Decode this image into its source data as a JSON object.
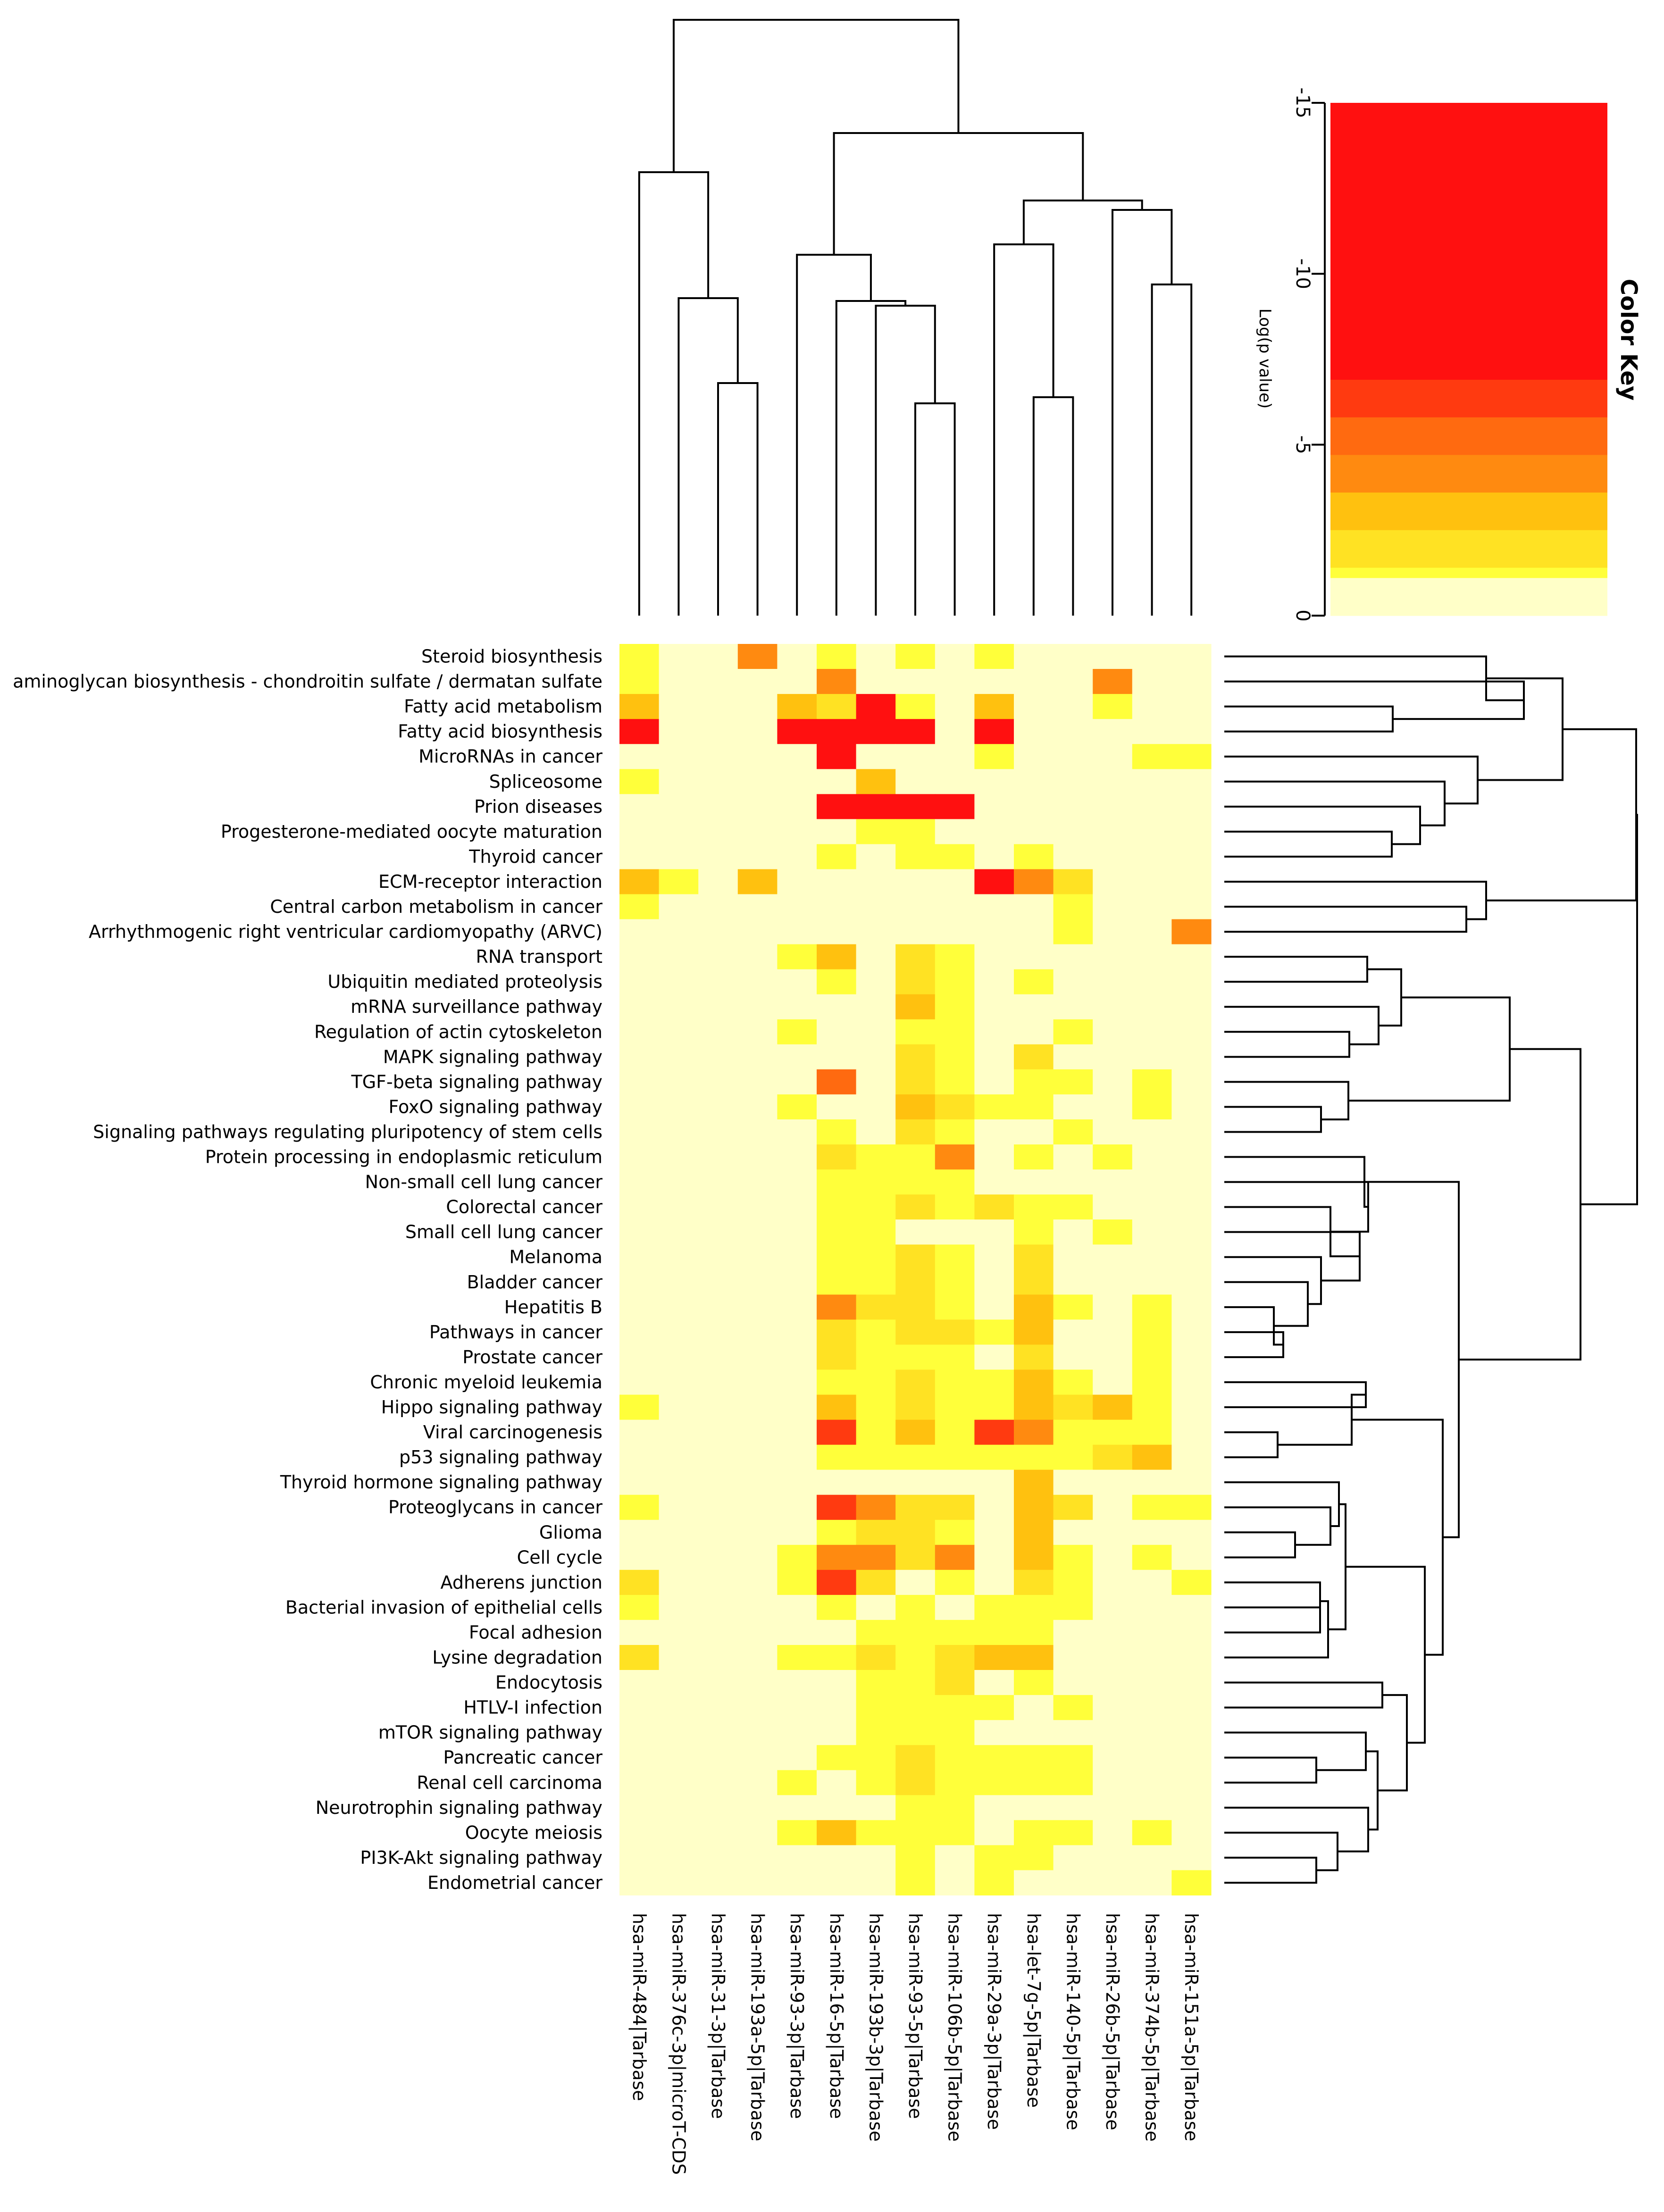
{
  "chart_data": {
    "type": "heatmap",
    "value_label": "Log(p value)",
    "key_title": "Color Key",
    "key_ticks": [
      "-15",
      "-10",
      "-5",
      "0"
    ],
    "key_range": [
      -15,
      0
    ],
    "palette": [
      {
        "value": 0,
        "color": "#ffffc8"
      },
      {
        "value": -1,
        "color": "#ffff3a"
      },
      {
        "value": -2,
        "color": "#ffe223"
      },
      {
        "value": -3,
        "color": "#ffc10f"
      },
      {
        "value": -4,
        "color": "#ff8a10"
      },
      {
        "value": -5,
        "color": "#ff6a10"
      },
      {
        "value": -6,
        "color": "#ff3a10"
      },
      {
        "value": -7,
        "color": "#ff1010"
      }
    ],
    "columns": [
      "hsa-miR-484|Tarbase",
      "hsa-miR-376c-3p|microT-CDS",
      "hsa-miR-31-3p|Tarbase",
      "hsa-miR-193a-5p|Tarbase",
      "hsa-miR-93-3p|Tarbase",
      "hsa-miR-16-5p|Tarbase",
      "hsa-miR-193b-3p|Tarbase",
      "hsa-miR-93-5p|Tarbase",
      "hsa-miR-106b-5p|Tarbase",
      "hsa-miR-29a-3p|Tarbase",
      "hsa-let-7g-5p|Tarbase",
      "hsa-miR-140-5p|Tarbase",
      "hsa-miR-26b-5p|Tarbase",
      "hsa-miR-374b-5p|Tarbase",
      "hsa-miR-151a-5p|Tarbase"
    ],
    "rows": [
      "Steroid biosynthesis",
      "aminoglycan biosynthesis - chondroitin sulfate / dermatan sulfate",
      "Fatty acid metabolism",
      "Fatty acid biosynthesis",
      "MicroRNAs in cancer",
      "Spliceosome",
      "Prion diseases",
      "Progesterone-mediated oocyte maturation",
      "Thyroid cancer",
      "ECM-receptor interaction",
      "Central carbon metabolism in cancer",
      "Arrhythmogenic right ventricular cardiomyopathy (ARVC)",
      "RNA transport",
      "Ubiquitin mediated proteolysis",
      "mRNA surveillance pathway",
      "Regulation of actin cytoskeleton",
      "MAPK signaling pathway",
      "TGF-beta signaling pathway",
      "FoxO signaling pathway",
      "Signaling pathways regulating pluripotency of stem cells",
      "Protein processing in endoplasmic reticulum",
      "Non-small cell lung cancer",
      "Colorectal cancer",
      "Small cell lung cancer",
      "Melanoma",
      "Bladder cancer",
      "Hepatitis B",
      "Pathways in cancer",
      "Prostate cancer",
      "Chronic myeloid leukemia",
      "Hippo signaling pathway",
      "Viral carcinogenesis",
      "p53 signaling pathway",
      "Thyroid hormone signaling pathway",
      "Proteoglycans in cancer",
      "Glioma",
      "Cell cycle",
      "Adherens junction",
      "Bacterial invasion of epithelial cells",
      "Focal adhesion",
      "Lysine degradation",
      "Endocytosis",
      "HTLV-I infection",
      "mTOR signaling pathway",
      "Pancreatic cancer",
      "Renal cell carcinoma",
      "Neurotrophin signaling pathway",
      "Oocyte meiosis",
      "PI3K-Akt signaling pathway",
      "Endometrial cancer"
    ],
    "matrix": [
      [
        -1,
        0,
        0,
        -4,
        0,
        -1,
        0,
        -1,
        0,
        -1,
        0,
        0,
        0,
        0,
        0
      ],
      [
        -1,
        0,
        0,
        0,
        0,
        -4,
        0,
        0,
        0,
        0,
        0,
        0,
        -4,
        0,
        0
      ],
      [
        -3,
        0,
        0,
        0,
        -3,
        -2,
        -7,
        -1,
        0,
        -3,
        0,
        0,
        -1,
        0,
        0
      ],
      [
        -7,
        0,
        0,
        0,
        -7,
        -7,
        -7,
        -7,
        0,
        -7,
        0,
        0,
        0,
        0,
        0
      ],
      [
        0,
        0,
        0,
        0,
        0,
        -7,
        0,
        0,
        0,
        -1,
        0,
        0,
        0,
        -1,
        -1
      ],
      [
        -1,
        0,
        0,
        0,
        0,
        0,
        -3,
        0,
        0,
        0,
        0,
        0,
        0,
        0,
        0
      ],
      [
        0,
        0,
        0,
        0,
        0,
        -7,
        -7,
        -7,
        -7,
        0,
        0,
        0,
        0,
        0,
        0
      ],
      [
        0,
        0,
        0,
        0,
        0,
        0,
        -1,
        -1,
        0,
        0,
        0,
        0,
        0,
        0,
        0
      ],
      [
        0,
        0,
        0,
        0,
        0,
        -1,
        0,
        -1,
        -1,
        0,
        -1,
        0,
        0,
        0,
        0
      ],
      [
        -3,
        -1,
        0,
        -3,
        0,
        0,
        0,
        0,
        0,
        -7,
        -4,
        -2,
        0,
        0,
        0
      ],
      [
        -1,
        0,
        0,
        0,
        0,
        0,
        0,
        0,
        0,
        0,
        0,
        -1,
        0,
        0,
        0
      ],
      [
        0,
        0,
        0,
        0,
        0,
        0,
        0,
        0,
        0,
        0,
        0,
        -1,
        0,
        0,
        -4
      ],
      [
        0,
        0,
        0,
        0,
        -1,
        -3,
        0,
        -2,
        -1,
        0,
        0,
        0,
        0,
        0,
        0
      ],
      [
        0,
        0,
        0,
        0,
        0,
        -1,
        0,
        -2,
        -1,
        0,
        -1,
        0,
        0,
        0,
        0
      ],
      [
        0,
        0,
        0,
        0,
        0,
        0,
        0,
        -3,
        -1,
        0,
        0,
        0,
        0,
        0,
        0
      ],
      [
        0,
        0,
        0,
        0,
        -1,
        0,
        0,
        -1,
        -1,
        0,
        0,
        -1,
        0,
        0,
        0
      ],
      [
        0,
        0,
        0,
        0,
        0,
        0,
        0,
        -2,
        -1,
        0,
        -2,
        0,
        0,
        0,
        0
      ],
      [
        0,
        0,
        0,
        0,
        0,
        -5,
        0,
        -2,
        -1,
        0,
        -1,
        -1,
        0,
        -1,
        0
      ],
      [
        0,
        0,
        0,
        0,
        -1,
        0,
        0,
        -3,
        -2,
        -1,
        -1,
        0,
        0,
        -1,
        0
      ],
      [
        0,
        0,
        0,
        0,
        0,
        -1,
        0,
        -2,
        -1,
        0,
        0,
        -1,
        0,
        0,
        0
      ],
      [
        0,
        0,
        0,
        0,
        0,
        -2,
        -1,
        -1,
        -4,
        0,
        -1,
        0,
        -1,
        0,
        0
      ],
      [
        0,
        0,
        0,
        0,
        0,
        -1,
        -1,
        -1,
        -1,
        0,
        0,
        0,
        0,
        0,
        0
      ],
      [
        0,
        0,
        0,
        0,
        0,
        -1,
        -1,
        -2,
        -1,
        -2,
        -1,
        -1,
        0,
        0,
        0
      ],
      [
        0,
        0,
        0,
        0,
        0,
        -1,
        -1,
        0,
        0,
        0,
        -1,
        0,
        -1,
        0,
        0
      ],
      [
        0,
        0,
        0,
        0,
        0,
        -1,
        -1,
        -2,
        -1,
        0,
        -2,
        0,
        0,
        0,
        0
      ],
      [
        0,
        0,
        0,
        0,
        0,
        -1,
        -1,
        -2,
        -1,
        0,
        -2,
        0,
        0,
        0,
        0
      ],
      [
        0,
        0,
        0,
        0,
        0,
        -4,
        -2,
        -2,
        -1,
        0,
        -3,
        -1,
        0,
        -1,
        0
      ],
      [
        0,
        0,
        0,
        0,
        0,
        -2,
        -1,
        -2,
        -2,
        -1,
        -3,
        0,
        0,
        -1,
        0
      ],
      [
        0,
        0,
        0,
        0,
        0,
        -2,
        -1,
        -1,
        -1,
        0,
        -2,
        0,
        0,
        -1,
        0
      ],
      [
        0,
        0,
        0,
        0,
        0,
        -1,
        -1,
        -2,
        -1,
        -1,
        -3,
        -1,
        0,
        -1,
        0
      ],
      [
        -1,
        0,
        0,
        0,
        0,
        -3,
        -1,
        -2,
        -1,
        -1,
        -3,
        -2,
        -3,
        -1,
        0
      ],
      [
        0,
        0,
        0,
        0,
        0,
        -6,
        -1,
        -3,
        -1,
        -6,
        -4,
        -1,
        -1,
        -1,
        0
      ],
      [
        0,
        0,
        0,
        0,
        0,
        -1,
        -1,
        -1,
        -1,
        -1,
        -1,
        -1,
        -2,
        -3,
        0
      ],
      [
        0,
        0,
        0,
        0,
        0,
        0,
        0,
        0,
        0,
        0,
        -3,
        0,
        0,
        0,
        0
      ],
      [
        -1,
        0,
        0,
        0,
        0,
        -6,
        -4,
        -2,
        -2,
        0,
        -3,
        -2,
        0,
        -1,
        -1
      ],
      [
        0,
        0,
        0,
        0,
        0,
        -1,
        -2,
        -2,
        -1,
        0,
        -3,
        0,
        0,
        0,
        0
      ],
      [
        0,
        0,
        0,
        0,
        -1,
        -4,
        -4,
        -2,
        -4,
        0,
        -3,
        -1,
        0,
        -1,
        0
      ],
      [
        -2,
        0,
        0,
        0,
        -1,
        -6,
        -2,
        0,
        -1,
        0,
        -2,
        -1,
        0,
        0,
        -1
      ],
      [
        -1,
        0,
        0,
        0,
        0,
        -1,
        0,
        -1,
        0,
        -1,
        -1,
        -1,
        0,
        0,
        0
      ],
      [
        0,
        0,
        0,
        0,
        0,
        0,
        -1,
        -1,
        -1,
        -1,
        -1,
        0,
        0,
        0,
        0
      ],
      [
        -2,
        0,
        0,
        0,
        -1,
        -1,
        -2,
        -1,
        -2,
        -3,
        -3,
        0,
        0,
        0,
        0
      ],
      [
        0,
        0,
        0,
        0,
        0,
        0,
        -1,
        -1,
        -2,
        0,
        -1,
        0,
        0,
        0,
        0
      ],
      [
        0,
        0,
        0,
        0,
        0,
        0,
        -1,
        -1,
        -1,
        -1,
        0,
        -1,
        0,
        0,
        0
      ],
      [
        0,
        0,
        0,
        0,
        0,
        0,
        -1,
        -1,
        -1,
        0,
        0,
        0,
        0,
        0,
        0
      ],
      [
        0,
        0,
        0,
        0,
        0,
        -1,
        -1,
        -2,
        -1,
        -1,
        -1,
        -1,
        0,
        0,
        0
      ],
      [
        0,
        0,
        0,
        0,
        -1,
        0,
        -1,
        -2,
        -1,
        -1,
        -1,
        -1,
        0,
        0,
        0
      ],
      [
        0,
        0,
        0,
        0,
        0,
        0,
        0,
        -1,
        -1,
        0,
        0,
        0,
        0,
        0,
        0
      ],
      [
        0,
        0,
        0,
        0,
        -1,
        -3,
        -1,
        -1,
        -1,
        0,
        -1,
        -1,
        0,
        -1,
        0
      ],
      [
        0,
        0,
        0,
        0,
        0,
        0,
        0,
        -1,
        0,
        -1,
        -1,
        0,
        0,
        0,
        0
      ],
      [
        0,
        0,
        0,
        0,
        0,
        0,
        0,
        -1,
        0,
        -1,
        0,
        0,
        0,
        0,
        -1
      ]
    ],
    "column_dendrogram": "((miR-484,(miR-376c,(miR-31,miR-193a))),((miR-93-3p,(miR-16,(miR-193b,(miR-93-5p,miR-106b)))),((miR-29a,(let-7g,miR-140)),(miR-26b,(miR-374b,miR-151a)))))",
    "row_dendrogram": "present (hierarchical clustering of pathways, shown on right)"
  }
}
